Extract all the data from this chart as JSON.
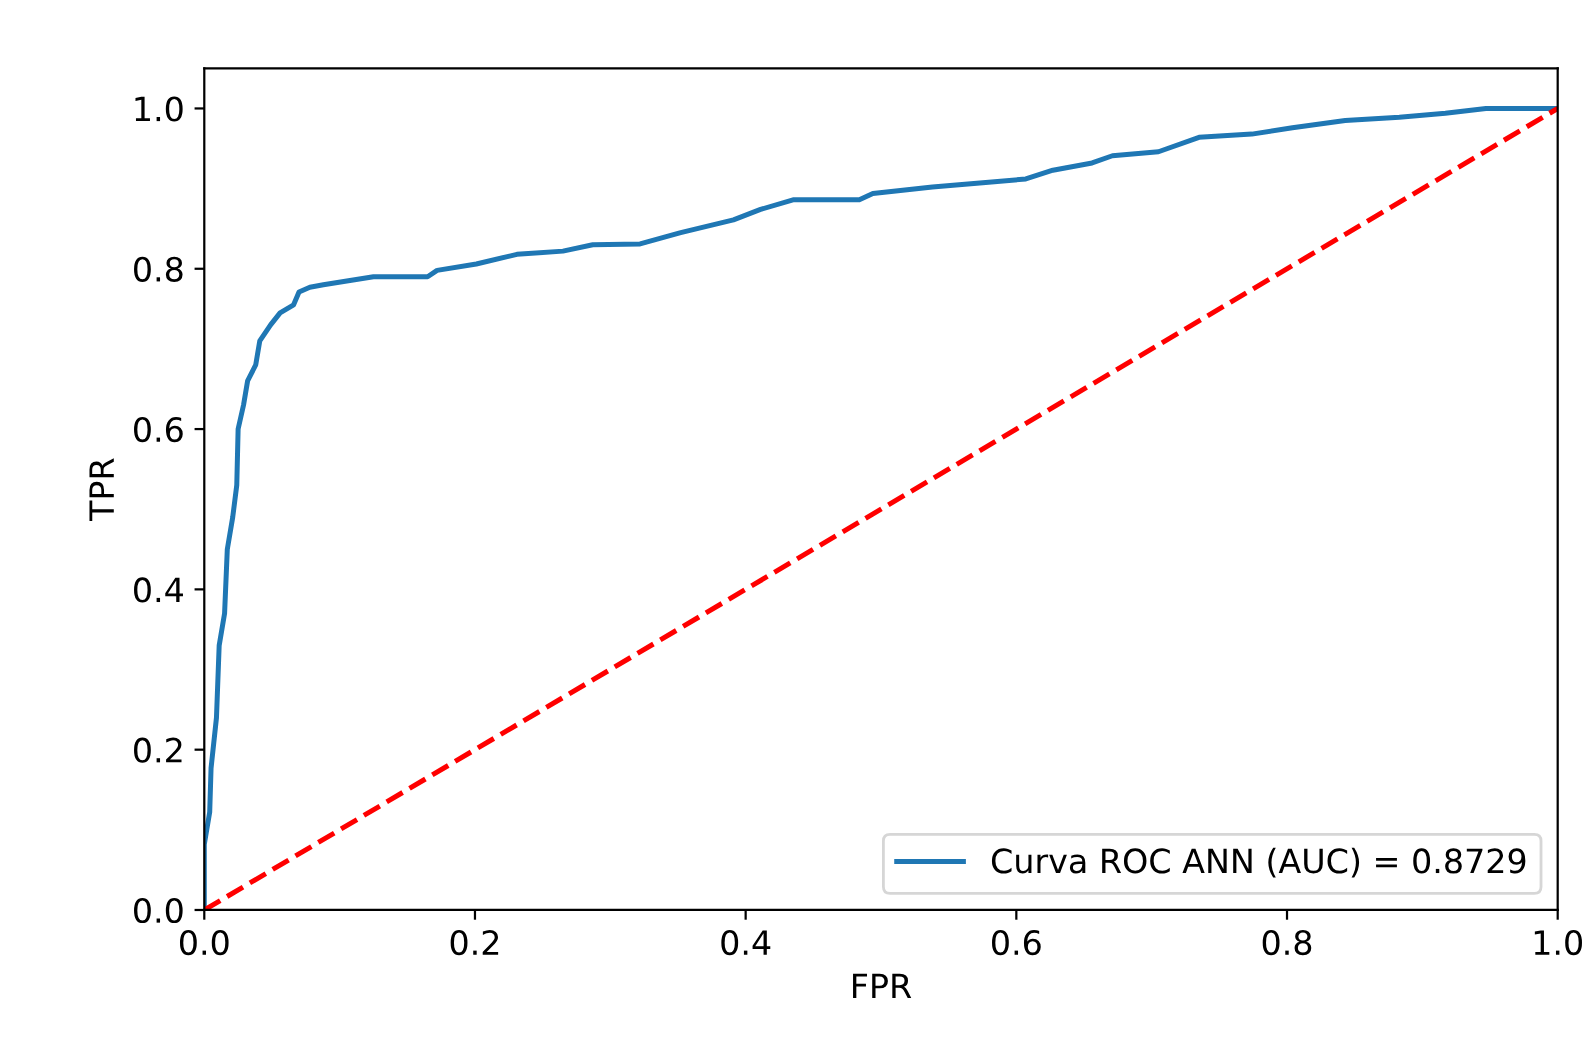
{
  "chart_data": {
    "type": "line",
    "xlabel": "FPR",
    "ylabel": "TPR",
    "xlim": [
      0.0,
      1.0
    ],
    "ylim": [
      0.0,
      1.05
    ],
    "xticks": [
      {
        "value": 0,
        "label": "0.0"
      },
      0.2,
      0.4,
      0.6,
      0.8,
      {
        "value": 1,
        "label": "1.0"
      }
    ],
    "yticks": [
      {
        "value": 0,
        "label": "0.0"
      },
      0.2,
      0.4,
      0.6,
      0.8,
      {
        "value": 1,
        "label": "1.0"
      }
    ],
    "grid": false,
    "legend": "bottom right",
    "series": [
      {
        "name": "Curva ROC ANN (AUC) = 0.8729",
        "color": "#1f77b4",
        "line_style": "solid",
        "x": [
          0,
          0,
          0.004,
          0.005,
          0.009,
          0.011,
          0.015,
          0.017,
          0.021,
          0.024,
          0.025,
          0.029,
          0.032,
          0.038,
          0.041,
          0.049,
          0.056,
          0.066,
          0.07,
          0.078,
          0.088,
          0.103,
          0.125,
          0.165,
          0.172,
          0.201,
          0.231,
          0.265,
          0.287,
          0.322,
          0.352,
          0.391,
          0.411,
          0.435,
          0.484,
          0.494,
          0.538,
          0.573,
          0.607,
          0.627,
          0.656,
          0.671,
          0.705,
          0.735,
          0.774,
          0.804,
          0.843,
          0.883,
          0.917,
          0.947,
          1.0
        ],
        "values": [
          0,
          0.082,
          0.122,
          0.177,
          0.24,
          0.33,
          0.37,
          0.45,
          0.49,
          0.53,
          0.6,
          0.63,
          0.66,
          0.68,
          0.71,
          0.73,
          0.745,
          0.755,
          0.771,
          0.777,
          0.78,
          0.784,
          0.79,
          0.79,
          0.798,
          0.806,
          0.818,
          0.822,
          0.83,
          0.831,
          0.845,
          0.861,
          0.874,
          0.886,
          0.886,
          0.894,
          0.902,
          0.907,
          0.912,
          0.923,
          0.932,
          0.941,
          0.946,
          0.964,
          0.968,
          0.976,
          0.985,
          0.989,
          0.994,
          1.0,
          1.0
        ]
      },
      {
        "color": "#ff0000",
        "line_style": "dashed",
        "x": [
          0,
          1
        ],
        "values": [
          0,
          1
        ]
      }
    ]
  }
}
